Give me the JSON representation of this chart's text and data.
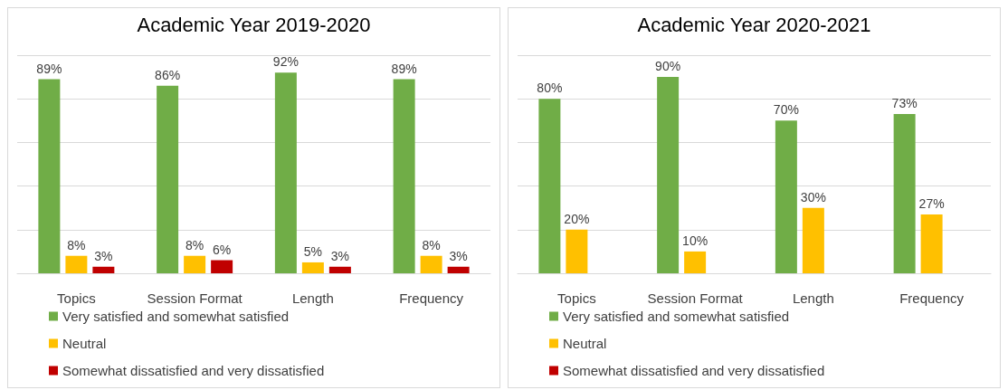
{
  "chart_data": [
    {
      "type": "bar",
      "title": "Academic Year 2019-2020",
      "categories": [
        "Topics",
        "Session Format",
        "Length",
        "Frequency"
      ],
      "series": [
        {
          "name": "Very satisfied and somewhat satisfied",
          "color": "#70ad47",
          "values": [
            89,
            86,
            92,
            89
          ],
          "value_labels": [
            "89%",
            "86%",
            "92%",
            "89%"
          ]
        },
        {
          "name": "Neutral",
          "color": "#ffc000",
          "values": [
            8,
            8,
            5,
            8
          ],
          "value_labels": [
            "8%",
            "8%",
            "5%",
            "8%"
          ]
        },
        {
          "name": "Somewhat dissatisfied and very dissatisfied",
          "color": "#c00000",
          "values": [
            3,
            6,
            3,
            3
          ],
          "value_labels": [
            "3%",
            "6%",
            "3%",
            "3%"
          ]
        }
      ],
      "ylim": [
        0,
        100
      ],
      "yticks": [
        0,
        20,
        40,
        60,
        80,
        100
      ],
      "grid": "y",
      "legend": "bottom",
      "tick_labels": "x"
    },
    {
      "type": "bar",
      "title": "Academic Year 2020-2021",
      "categories": [
        "Topics",
        "Session Format",
        "Length",
        "Frequency"
      ],
      "series": [
        {
          "name": "Very satisfied and somewhat satisfied",
          "color": "#70ad47",
          "values": [
            80,
            90,
            70,
            73
          ],
          "value_labels": [
            "80%",
            "90%",
            "70%",
            "73%"
          ]
        },
        {
          "name": "Neutral",
          "color": "#ffc000",
          "values": [
            20,
            10,
            30,
            27
          ],
          "value_labels": [
            "20%",
            "10%",
            "30%",
            "27%"
          ]
        },
        {
          "name": "Somewhat dissatisfied and very dissatisfied",
          "color": "#c00000",
          "values": [
            null,
            null,
            null,
            null
          ],
          "value_labels": [
            null,
            null,
            null,
            null
          ]
        }
      ],
      "ylim": [
        0,
        100
      ],
      "yticks": [
        0,
        20,
        40,
        60,
        80,
        100
      ],
      "grid": "y",
      "legend": "bottom",
      "tick_labels": "x"
    }
  ]
}
